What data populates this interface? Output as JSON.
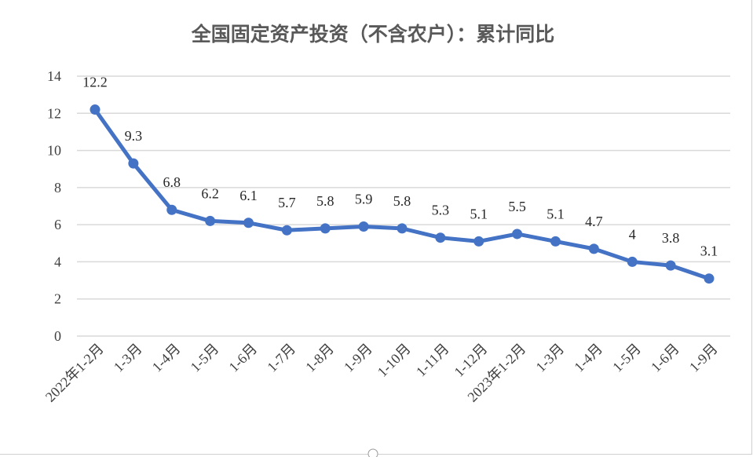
{
  "chart_data": {
    "type": "line",
    "title": "全国固定资产投资（不含农户）：累计同比",
    "categories": [
      "2022年1-2月",
      "1-3月",
      "1-4月",
      "1-5月",
      "1-6月",
      "1-7月",
      "1-8月",
      "1-9月",
      "1-10月",
      "1-11月",
      "1-12月",
      "2023年1-2月",
      "1-3月",
      "1-4月",
      "1-5月",
      "1-6月",
      "1-9月"
    ],
    "values": [
      12.2,
      9.3,
      6.8,
      6.2,
      6.1,
      5.7,
      5.8,
      5.9,
      5.8,
      5.3,
      5.1,
      5.5,
      5.1,
      4.7,
      4,
      3.8,
      3.1
    ],
    "data_labels": [
      "12.2",
      "9.3",
      "6.8",
      "6.2",
      "6.1",
      "5.7",
      "5.8",
      "5.9",
      "5.8",
      "5.3",
      "5.1",
      "5.5",
      "5.1",
      "4.7",
      "4",
      "3.8",
      "3.1"
    ],
    "yticks": [
      "0",
      "2",
      "4",
      "6",
      "8",
      "10",
      "12",
      "14"
    ],
    "ylim": [
      0,
      14
    ],
    "grid": true,
    "legend": "none",
    "colors": {
      "line": "#4472c4",
      "grid": "#d9d9d9"
    }
  }
}
